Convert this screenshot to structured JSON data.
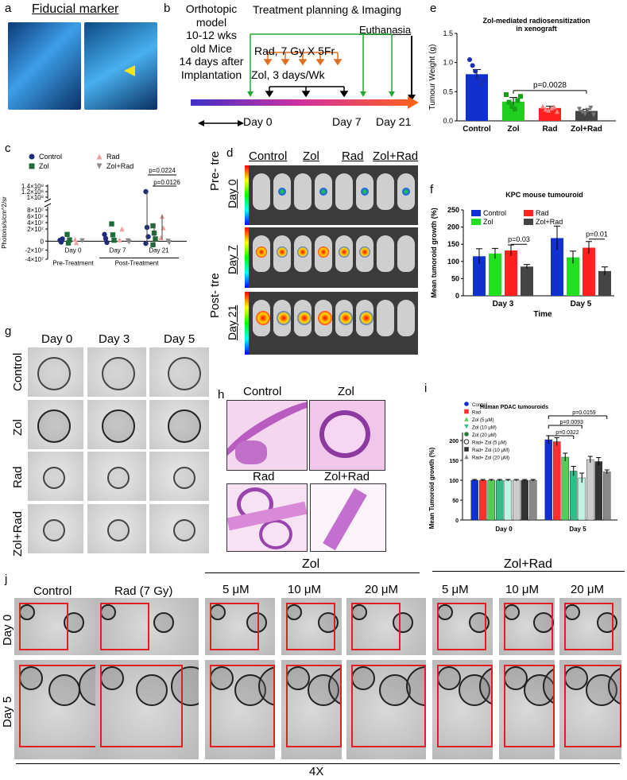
{
  "panels": {
    "a": {
      "letter": "a",
      "title": "Fiducial marker"
    },
    "b": {
      "letter": "b",
      "model_lines": [
        "Orthotopic model",
        "10-12 wks",
        "old Mice",
        "14 days after",
        "Implantation"
      ],
      "treatment_planning": "Treatment planning & Imaging",
      "euthanasia": "Euthanasia",
      "rad": "Rad, 7 Gy X 5Fr",
      "zol": "Zol, 3 days/Wk",
      "day0": "Day 0",
      "day7": "Day 7",
      "day21": "Day 21"
    },
    "c": {
      "letter": "c",
      "group_labels": [
        "Pre-Treatment",
        "Post-Treatment"
      ]
    },
    "d": {
      "letter": "d",
      "columns": [
        "Control",
        "Zol",
        "Rad",
        "Zol+Rad"
      ],
      "rows": [
        "Day 0",
        "Day 7",
        "Day 21"
      ],
      "pre_label": "Pre- tre",
      "post_label": "Post- tre"
    },
    "e": {
      "letter": "e"
    },
    "f": {
      "letter": "f"
    },
    "g": {
      "letter": "g",
      "columns": [
        "Day 0",
        "Day 3",
        "Day 5"
      ],
      "rows": [
        "Control",
        "Zol",
        "Rad",
        "Zol+Rad"
      ]
    },
    "h": {
      "letter": "h",
      "labels": [
        "Control",
        "Zol",
        "Rad",
        "Zol+Rad"
      ]
    },
    "i": {
      "letter": "i"
    },
    "j": {
      "letter": "j",
      "top_labels": [
        "Control",
        "Rad (7 Gy)",
        "5 μM",
        "10 μM",
        "20 μM",
        "5 μM",
        "10 μM",
        "20 μM"
      ],
      "group_zol": "Zol",
      "group_zolrad": "Zol+Rad",
      "rows": [
        "Day 0",
        "Day 5"
      ],
      "magnification": "4X"
    }
  },
  "chart_data": [
    {
      "id": "c",
      "type": "scatter",
      "categories": [
        "Day 0",
        "Day 7",
        "Day 21"
      ],
      "ylabel": "Photons/s/cm^2/sr",
      "yticks": [
        "1.4×10⁸",
        "1.2×10⁸",
        "1×10⁸",
        "8×10⁷",
        "6×10⁷",
        "4×10⁷",
        "2×10⁷",
        "0",
        "-2×10⁷",
        "-4×10⁷"
      ],
      "legend": [
        "Control",
        "Rad",
        "Zol",
        "Zol+Rad"
      ],
      "annotations": [
        "p=0.0224",
        "p=0.0126"
      ],
      "series": [
        {
          "name": "Control",
          "color": "#1f2a7a",
          "marker": "circle",
          "points": [
            [
              0,
              2000000.0
            ],
            [
              0,
              -2000000.0
            ],
            [
              0,
              5000000.0
            ],
            [
              1,
              15000000.0
            ],
            [
              1,
              6000000.0
            ],
            [
              1,
              -3000000.0
            ],
            [
              2,
              120000000.0
            ],
            [
              2,
              25000000.0
            ],
            [
              2,
              10000000.0
            ],
            [
              2,
              -5000000.0
            ]
          ]
        },
        {
          "name": "Zol",
          "color": "#1f6b3a",
          "marker": "square",
          "points": [
            [
              0,
              15000000.0
            ],
            [
              0,
              -4000000.0
            ],
            [
              0,
              3000000.0
            ],
            [
              1,
              36000000.0
            ],
            [
              1,
              14000000.0
            ],
            [
              1,
              2000000.0
            ],
            [
              2,
              30000000.0
            ],
            [
              2,
              18000000.0
            ],
            [
              2,
              5000000.0
            ],
            [
              2,
              -8000000.0
            ]
          ]
        },
        {
          "name": "Rad",
          "color": "#f0a0a0",
          "marker": "triangle",
          "points": [
            [
              0,
              4000000.0
            ],
            [
              0,
              -3000000.0
            ],
            [
              1,
              20000000.0
            ],
            [
              1,
              3000000.0
            ],
            [
              2,
              60000000.0
            ],
            [
              2,
              24000000.0
            ],
            [
              2,
              8000000.0
            ]
          ]
        },
        {
          "name": "Zol+Rad",
          "color": "#8a8a8a",
          "marker": "triangle-down",
          "points": [
            [
              0,
              1000000.0
            ],
            [
              1,
              1000000.0
            ],
            [
              1,
              -2000000.0
            ],
            [
              2,
              0.0
            ],
            [
              2,
              -3000000.0
            ]
          ]
        }
      ]
    },
    {
      "id": "e",
      "type": "bar",
      "title": "Zol-mediated radiosensitization in xenograft",
      "categories": [
        "Control",
        "Zol",
        "Rad",
        "Zol+Rad"
      ],
      "values": [
        0.8,
        0.33,
        0.22,
        0.17
      ],
      "errors": [
        0.08,
        0.07,
        0.03,
        0.03
      ],
      "colors": [
        "#1030d0",
        "#20d020",
        "#ff2020",
        "#444444"
      ],
      "ylabel": "Tumour Weight (g)",
      "ylim": [
        0,
        1.5
      ],
      "yticks": [
        "0.0",
        "0.5",
        "1.0",
        "1.5"
      ],
      "annotation": "p=0.0028",
      "points": [
        [
          1.05,
          0.95,
          0.85,
          0.72,
          0.62,
          0.7
        ],
        [
          0.45,
          0.32,
          0.25,
          0.2,
          0.35,
          0.42
        ],
        [
          0.25,
          0.2,
          0.18,
          0.22,
          0.24,
          0.16
        ],
        [
          0.2,
          0.15,
          0.12,
          0.18,
          0.22,
          0.1
        ]
      ]
    },
    {
      "id": "f",
      "type": "bar",
      "title": "KPC mouse tumouroid",
      "categories": [
        "Day 3",
        "Day 5"
      ],
      "xlabel": "Time",
      "ylabel": "Mean tumoroid growth (%)",
      "ylim": [
        0,
        250
      ],
      "yticks": [
        "0",
        "50",
        "100",
        "150",
        "200",
        "250"
      ],
      "series": [
        {
          "name": "Control",
          "color": "#1030d0",
          "values": [
            115,
            168
          ],
          "errors": [
            22,
            35
          ]
        },
        {
          "name": "Zol",
          "color": "#20e020",
          "values": [
            123,
            112
          ],
          "errors": [
            15,
            18
          ]
        },
        {
          "name": "Rad",
          "color": "#ff2020",
          "values": [
            132,
            140
          ],
          "errors": [
            16,
            18
          ]
        },
        {
          "name": "Zol+Rad",
          "color": "#444444",
          "values": [
            85,
            72
          ],
          "errors": [
            6,
            12
          ]
        }
      ],
      "annotations": [
        "p=0.03",
        "p=0.01"
      ]
    },
    {
      "id": "i",
      "type": "bar",
      "title": "Human PDAC tumouroids",
      "categories": [
        "Day 0",
        "Day 5"
      ],
      "ylabel": "Mean Tumoroid growth (%)",
      "ylim": [
        0,
        300
      ],
      "yticks": [
        "0",
        "50",
        "100",
        "150",
        "200",
        "250",
        "300"
      ],
      "series": [
        {
          "name": "Control",
          "color": "#1030d0",
          "values": [
            100,
            202
          ],
          "errors": [
            2,
            10
          ]
        },
        {
          "name": "Rad",
          "color": "#ff3030",
          "values": [
            100,
            197
          ],
          "errors": [
            2,
            10
          ]
        },
        {
          "name": "Zol (5 μM)",
          "color": "#55cc55",
          "values": [
            100,
            158
          ],
          "errors": [
            2,
            10
          ]
        },
        {
          "name": "Zol (10 μM)",
          "color": "#33bb88",
          "values": [
            100,
            123
          ],
          "errors": [
            2,
            12
          ]
        },
        {
          "name": "Zol (20 μM)",
          "color": "#bff2e0",
          "values": [
            100,
            106
          ],
          "errors": [
            2,
            12
          ]
        },
        {
          "name": "Rad+ Zol (5 μM)",
          "color": "#cccccc",
          "values": [
            100,
            152
          ],
          "errors": [
            2,
            8
          ]
        },
        {
          "name": "Rad+ Zol (10 μM)",
          "color": "#333333",
          "values": [
            100,
            147
          ],
          "errors": [
            2,
            10
          ]
        },
        {
          "name": "Rad+ Zol (20 μM)",
          "color": "#888888",
          "values": [
            100,
            121
          ],
          "errors": [
            2,
            5
          ]
        }
      ],
      "annotations": [
        "p=0.0159",
        "p=0.0093",
        "p=0.0322"
      ]
    }
  ]
}
